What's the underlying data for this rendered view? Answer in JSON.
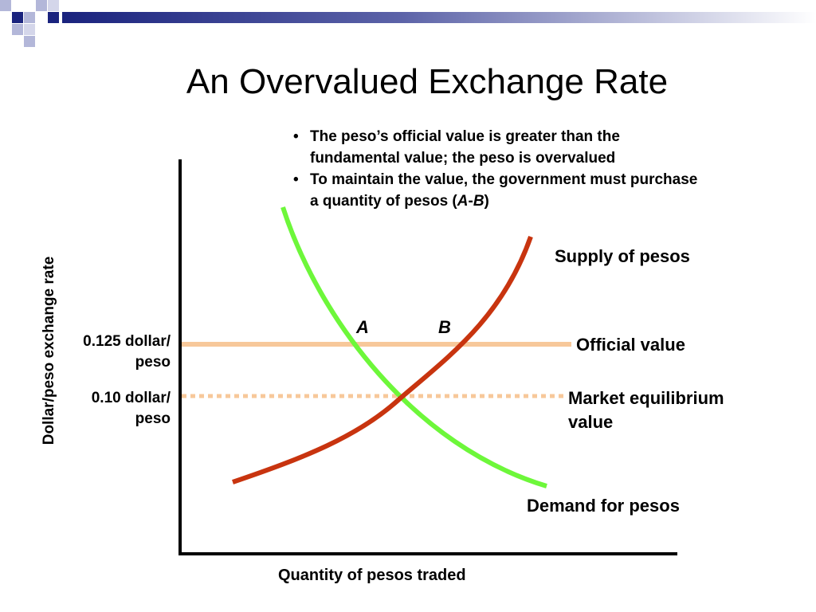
{
  "title": "An Overvalued Exchange Rate",
  "bullets": [
    "The peso’s official value is greater than the fundamental value; the peso is overvalued",
    "To maintain the value, the government must purchase a quantity of pesos ("
  ],
  "bullet2_italic_a": "A",
  "bullet2_dash": "-",
  "bullet2_italic_b": "B",
  "bullet2_close": ")",
  "diagram": {
    "y_axis_label": "Dollar/peso  exchange rate",
    "x_axis_label": "Quantity of pesos traded",
    "tick_official_line1": "0.125 dollar/",
    "tick_official_line2": "peso",
    "tick_market_line1": "0.10 dollar/",
    "tick_market_line2": "peso",
    "supply_label": "Supply of pesos",
    "demand_label": "Demand for pesos",
    "official_label": "Official value",
    "market_label_line1": "Market equilibrium",
    "market_label_line2": "value",
    "point_a": "A",
    "point_b": "B"
  },
  "colors": {
    "supply": "#c8340f",
    "demand": "#6df73a",
    "official": "#f7c89a",
    "market": "#f7c89a",
    "banner_dark": "#1a237e",
    "banner_light": "#b3b7d9"
  }
}
